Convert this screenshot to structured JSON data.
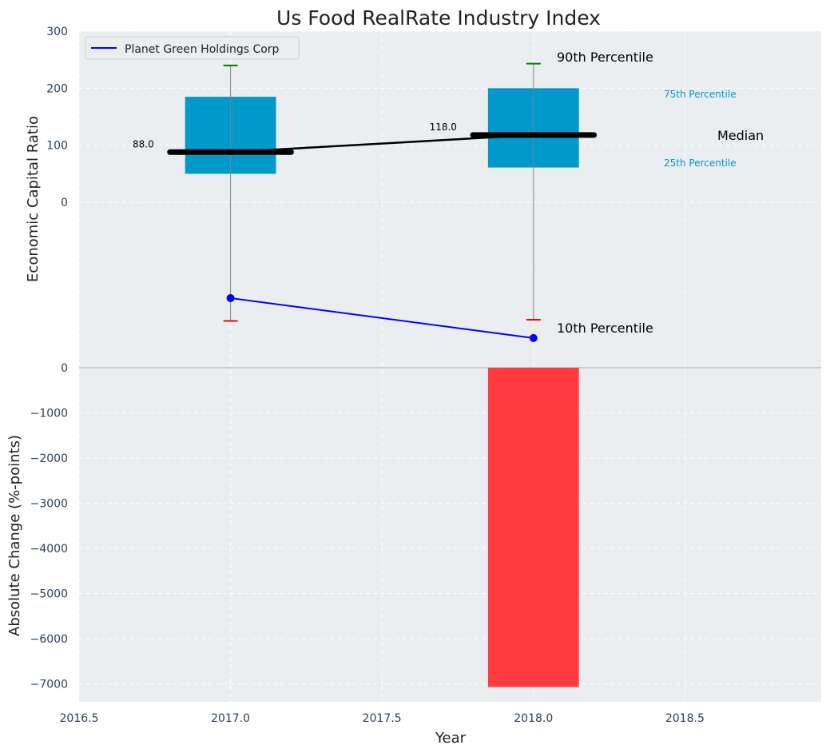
{
  "colors": {
    "panel_bg": "#eaeef1",
    "box": "#0099cc",
    "median": "#000000",
    "company_line": "#0000ff",
    "p90_cap": "#008000",
    "p10_cap": "#ff0000",
    "negative_bar": "#ff3b3f",
    "pct_label": "#0099cc",
    "tick_text": "#2e3e5c",
    "zero_line": "#aaaaaa",
    "whisker": "#808080"
  },
  "chart_data": [
    {
      "type": "box",
      "title": "Us Food RealRate Industry Index",
      "xlabel": "",
      "ylabel": "Economic Capital Ratio",
      "xlim": [
        2016.5,
        2018.95
      ],
      "ylim": [
        -290,
        300
      ],
      "yticks": [
        0,
        100,
        200,
        300
      ],
      "grid": true,
      "legend": {
        "position": "top-left",
        "entries": [
          "Planet Green Holdings Corp"
        ]
      },
      "boxes": [
        {
          "x": 2017.0,
          "p10": -208,
          "p25": 50,
          "median": 88,
          "p75": 185,
          "p90": 240,
          "median_label": "88.0"
        },
        {
          "x": 2018.0,
          "p10": -206,
          "p25": 61,
          "median": 118,
          "p75": 200,
          "p90": 243,
          "median_label": "118.0"
        }
      ],
      "series": [
        {
          "name": "Planet Green Holdings Corp",
          "x": [
            2017.0,
            2018.0
          ],
          "values": [
            -168,
            -238
          ]
        }
      ],
      "median_trend": {
        "x": [
          2017.0,
          2018.0
        ],
        "values": [
          88,
          118
        ]
      },
      "annotations": {
        "p90": "90th Percentile",
        "p75": "75th Percentile",
        "median": "Median",
        "p25": "25th Percentile",
        "p10": "10th Percentile"
      }
    },
    {
      "type": "bar",
      "xlabel": "Year",
      "ylabel": "Absolute Change (%-points)",
      "xlim": [
        2016.5,
        2018.95
      ],
      "xticks": [
        2016.5,
        2017.0,
        2017.5,
        2018.0,
        2018.5
      ],
      "ylim": [
        -7400,
        0
      ],
      "yticks": [
        0,
        -1000,
        -2000,
        -3000,
        -4000,
        -5000,
        -6000,
        -7000
      ],
      "grid": true,
      "x": [
        2018.0
      ],
      "values": [
        -7070
      ]
    }
  ]
}
